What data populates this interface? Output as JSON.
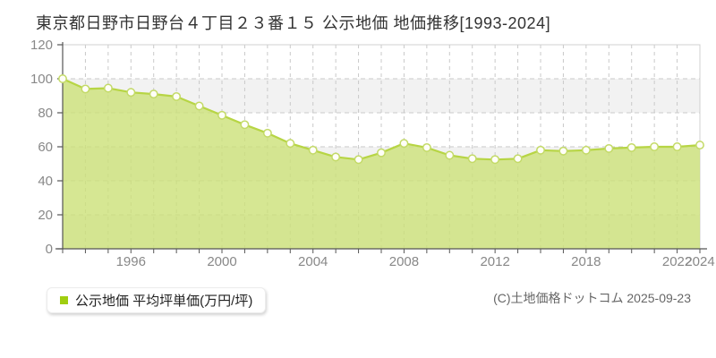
{
  "chart_data": {
    "type": "area",
    "title": "東京都日野市日野台４丁目２３番１５ 公示地価 地価推移[1993-2024]",
    "series": [
      {
        "name": "公示地価 平均坪単価(万円/坪)",
        "values": [
          100,
          94,
          94.5,
          92,
          91,
          89.5,
          84,
          78.5,
          73,
          68,
          62,
          58,
          54,
          52.5,
          56.5,
          62,
          59.5,
          55,
          53,
          52.5,
          53,
          58,
          57.5,
          58,
          59,
          59.5,
          60,
          60,
          61
        ]
      }
    ],
    "x_range_label": "1993-2024",
    "x_tick_labels": [
      {
        "index": 3,
        "label": "1996"
      },
      {
        "index": 7,
        "label": "2000"
      },
      {
        "index": 11,
        "label": "2004"
      },
      {
        "index": 15,
        "label": "2008"
      },
      {
        "index": 19,
        "label": "2012"
      },
      {
        "index": 23,
        "label": "2018"
      },
      {
        "index": 27,
        "label": "2022"
      },
      {
        "index": 28,
        "label": "2024"
      }
    ],
    "y_ticks": [
      0,
      20,
      40,
      60,
      80,
      100,
      120
    ],
    "ylim": [
      0,
      120
    ],
    "grid": true,
    "legend_position": "bottom-left",
    "colors": {
      "area_fill": "#cce178",
      "area_fill_opacity": 0.8,
      "line": "#b7d544",
      "marker_fill": "#fffef8",
      "marker_stroke": "#c3da67",
      "grid": "#c9c9c9",
      "axis": "#555555",
      "tick_label": "#888888",
      "band_light": "#ffffff",
      "band_shade": "#f2f2f2",
      "legend_marker": "#a0ce10",
      "plot_border": "#d0d0d0"
    }
  },
  "footer": {
    "copyright": "(C)土地価格ドットコム 2025-09-23"
  }
}
